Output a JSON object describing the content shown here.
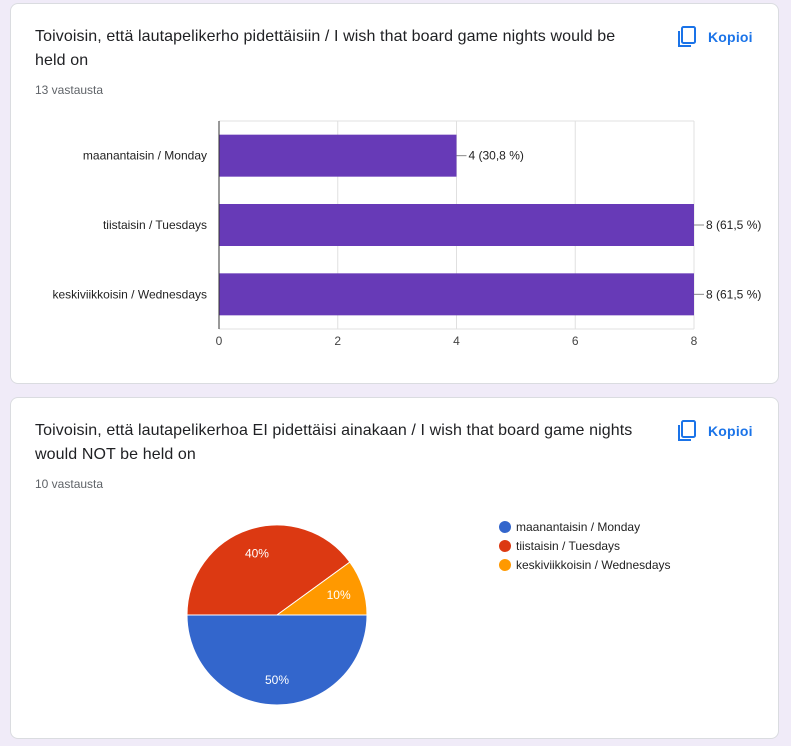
{
  "questions": [
    {
      "title": "Toivoisin, että lautapelikerho pidettäisiin / I wish that board game nights would be held on",
      "responses": "13 vastausta",
      "copy_label": "Kopioi"
    },
    {
      "title": "Toivoisin, että lautapelikerhoa EI pidettäisi ainakaan / I wish that board game nights would NOT be held on",
      "responses": "10 vastausta",
      "copy_label": "Kopioi"
    }
  ],
  "chart_data": [
    {
      "type": "bar",
      "orientation": "horizontal",
      "categories": [
        "maanantaisin / Monday",
        "tiistaisin / Tuesdays",
        "keskiviikkoisin / Wednesdays"
      ],
      "values": [
        4,
        8,
        8
      ],
      "data_labels": [
        "4 (30,8 %)",
        "8 (61,5 %)",
        "8 (61,5 %)"
      ],
      "xticks": [
        "0",
        "2",
        "4",
        "6",
        "8"
      ],
      "xlim": [
        0,
        8
      ],
      "grid": true,
      "color": "#673ab7"
    },
    {
      "type": "pie",
      "categories": [
        "maanantaisin / Monday",
        "tiistaisin / Tuesdays",
        "keskiviikkoisin / Wednesdays"
      ],
      "values": [
        50,
        40,
        10
      ],
      "data_labels": [
        "50%",
        "40%",
        "10%"
      ],
      "colors": [
        "#3366cc",
        "#dc3912",
        "#ff9900"
      ],
      "legend_position": "right"
    }
  ]
}
